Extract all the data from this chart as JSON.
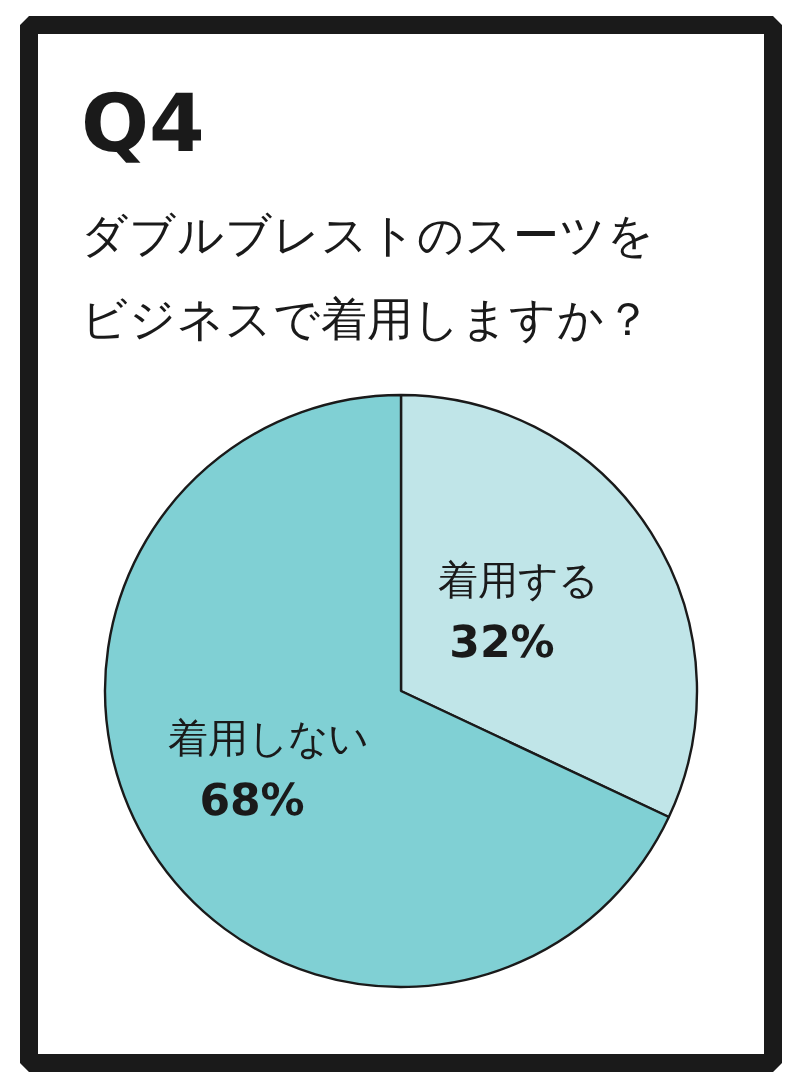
{
  "chart_data": {
    "type": "pie",
    "title": "Q4",
    "subtitle": "ダブルブレストのスーツをビジネスで着用しますか？",
    "categories": [
      "着用する",
      "着用しない"
    ],
    "values": [
      32,
      68
    ],
    "colors": [
      "#c0e5e8",
      "#80d0d4"
    ],
    "value_labels": [
      "32%",
      "68%"
    ]
  }
}
